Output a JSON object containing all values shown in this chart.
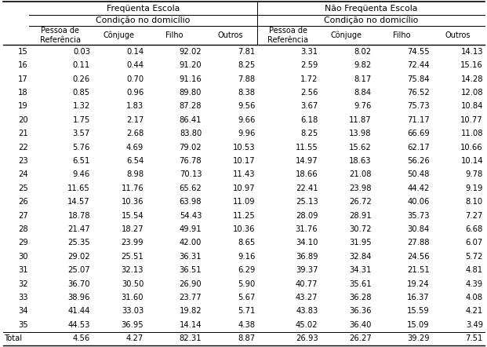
{
  "col_groups": [
    "Freqüenta Escola",
    "Não Freqüenta Escola"
  ],
  "sub_groups": [
    "Condição no domicílio",
    "Condição no domicílio"
  ],
  "col_headers": [
    "Pessoa de\nReferência",
    "Cônjuge",
    "Filho",
    "Outros",
    "Pessoa de\nReferência",
    "Cônjuge",
    "Filho",
    "Outros"
  ],
  "row_labels": [
    "15",
    "16",
    "17",
    "18",
    "19",
    "20",
    "21",
    "22",
    "23",
    "24",
    "25",
    "26",
    "27",
    "28",
    "29",
    "30",
    "31",
    "32",
    "33",
    "34",
    "35",
    "Total"
  ],
  "data": [
    [
      0.03,
      0.14,
      92.02,
      7.81,
      3.31,
      8.02,
      74.55,
      14.13
    ],
    [
      0.11,
      0.44,
      91.2,
      8.25,
      2.59,
      9.82,
      72.44,
      15.16
    ],
    [
      0.26,
      0.7,
      91.16,
      7.88,
      1.72,
      8.17,
      75.84,
      14.28
    ],
    [
      0.85,
      0.96,
      89.8,
      8.38,
      2.56,
      8.84,
      76.52,
      12.08
    ],
    [
      1.32,
      1.83,
      87.28,
      9.56,
      3.67,
      9.76,
      75.73,
      10.84
    ],
    [
      1.75,
      2.17,
      86.41,
      9.66,
      6.18,
      11.87,
      71.17,
      10.77
    ],
    [
      3.57,
      2.68,
      83.8,
      9.96,
      8.25,
      13.98,
      66.69,
      11.08
    ],
    [
      5.76,
      4.69,
      79.02,
      10.53,
      11.55,
      15.62,
      62.17,
      10.66
    ],
    [
      6.51,
      6.54,
      76.78,
      10.17,
      14.97,
      18.63,
      56.26,
      10.14
    ],
    [
      9.46,
      8.98,
      70.13,
      11.43,
      18.66,
      21.08,
      50.48,
      9.78
    ],
    [
      11.65,
      11.76,
      65.62,
      10.97,
      22.41,
      23.98,
      44.42,
      9.19
    ],
    [
      14.57,
      10.36,
      63.98,
      11.09,
      25.13,
      26.72,
      40.06,
      8.1
    ],
    [
      18.78,
      15.54,
      54.43,
      11.25,
      28.09,
      28.91,
      35.73,
      7.27
    ],
    [
      21.47,
      18.27,
      49.91,
      10.36,
      31.76,
      30.72,
      30.84,
      6.68
    ],
    [
      25.35,
      23.99,
      42.0,
      8.65,
      34.1,
      31.95,
      27.88,
      6.07
    ],
    [
      29.02,
      25.51,
      36.31,
      9.16,
      36.89,
      32.84,
      24.56,
      5.72
    ],
    [
      25.07,
      32.13,
      36.51,
      6.29,
      39.37,
      34.31,
      21.51,
      4.81
    ],
    [
      36.7,
      30.5,
      26.9,
      5.9,
      40.77,
      35.61,
      19.24,
      4.39
    ],
    [
      38.96,
      31.6,
      23.77,
      5.67,
      43.27,
      36.28,
      16.37,
      4.08
    ],
    [
      41.44,
      33.03,
      19.82,
      5.71,
      43.83,
      36.36,
      15.59,
      4.21
    ],
    [
      44.53,
      36.95,
      14.14,
      4.38,
      45.02,
      36.4,
      15.09,
      3.49
    ],
    [
      4.56,
      4.27,
      82.31,
      8.87,
      26.93,
      26.27,
      39.29,
      7.51
    ]
  ],
  "bg_color": "#ffffff"
}
